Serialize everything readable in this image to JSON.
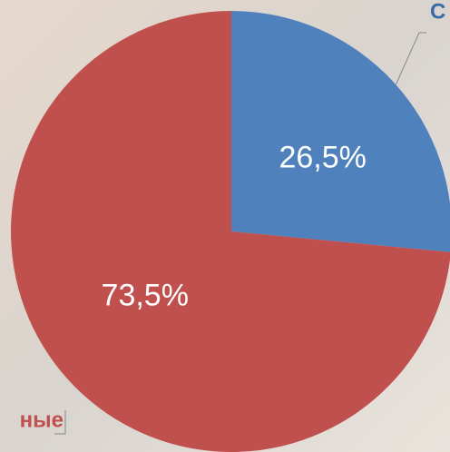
{
  "chart_data": {
    "type": "pie",
    "categories": [
      "С",
      "ные"
    ],
    "values": [
      26.5,
      73.5
    ],
    "value_labels": [
      "26,5%",
      "73,5%"
    ],
    "colors": [
      "#4f81bd",
      "#c0504d"
    ]
  }
}
